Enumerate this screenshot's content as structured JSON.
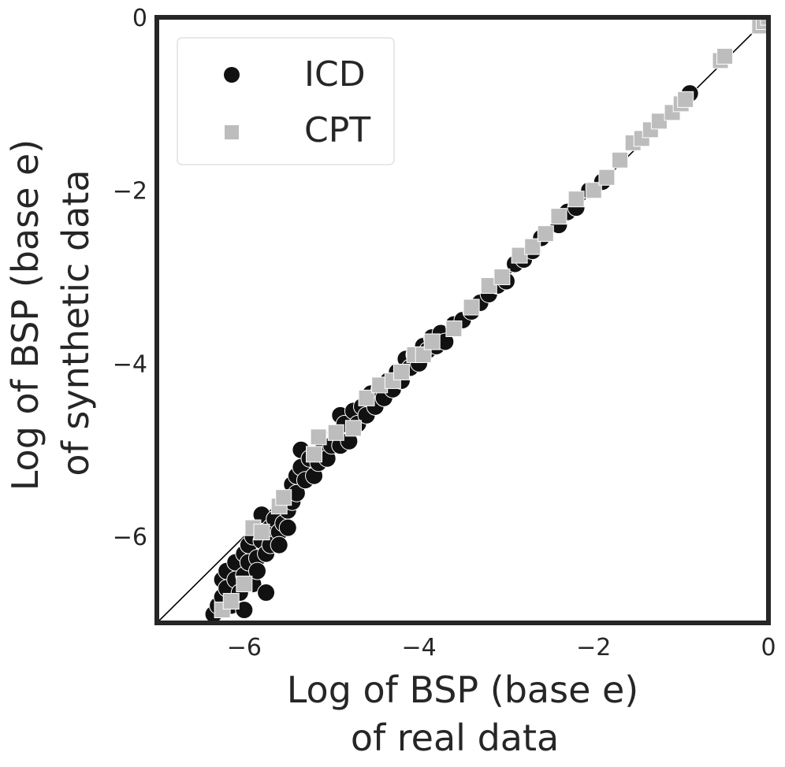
{
  "chart_data": {
    "type": "scatter",
    "xlabel": [
      "Log of BSP (base e)",
      "of real data"
    ],
    "ylabel": [
      "Log of BSP (base e)",
      "of synthetic data"
    ],
    "xlim": [
      -7,
      0
    ],
    "ylim": [
      -7,
      0
    ],
    "x_ticks": [
      -6,
      -4,
      -2,
      0
    ],
    "y_ticks": [
      0,
      -2,
      -4,
      -6
    ],
    "x_tick_labels": [
      "−6",
      "−4",
      "−2",
      "0"
    ],
    "y_tick_labels": [
      "0",
      "−2",
      "−4",
      "−6"
    ],
    "grid": false,
    "legend_position": "top-left",
    "reference_line": {
      "from": [
        -7,
        -7
      ],
      "to": [
        0,
        0
      ],
      "color": "#000000"
    },
    "colors": {
      "icd": "#111111",
      "cpt": "#bdbdbd",
      "frame": "#262626"
    },
    "series": [
      {
        "name": "ICD",
        "marker": "circle",
        "color": "#111111",
        "points": [
          [
            -6.35,
            -6.9
          ],
          [
            -6.3,
            -6.8
          ],
          [
            -6.25,
            -6.7
          ],
          [
            -6.25,
            -6.5
          ],
          [
            -6.2,
            -6.6
          ],
          [
            -6.2,
            -6.4
          ],
          [
            -6.15,
            -6.8
          ],
          [
            -6.1,
            -6.3
          ],
          [
            -6.1,
            -6.5
          ],
          [
            -6.05,
            -6.65
          ],
          [
            -6.0,
            -6.2
          ],
          [
            -6.0,
            -6.45
          ],
          [
            -6.0,
            -6.85
          ],
          [
            -5.95,
            -6.3
          ],
          [
            -5.95,
            -6.1
          ],
          [
            -5.9,
            -6.55
          ],
          [
            -5.9,
            -6.0
          ],
          [
            -5.85,
            -6.25
          ],
          [
            -5.85,
            -6.4
          ],
          [
            -5.8,
            -5.75
          ],
          [
            -5.8,
            -6.05
          ],
          [
            -5.75,
            -6.2
          ],
          [
            -5.75,
            -6.65
          ],
          [
            -5.7,
            -5.9
          ],
          [
            -5.7,
            -6.1
          ],
          [
            -5.65,
            -5.8
          ],
          [
            -5.6,
            -5.95
          ],
          [
            -5.6,
            -6.1
          ],
          [
            -5.55,
            -5.6
          ],
          [
            -5.55,
            -5.85
          ],
          [
            -5.5,
            -5.7
          ],
          [
            -5.5,
            -5.9
          ],
          [
            -5.45,
            -5.4
          ],
          [
            -5.45,
            -5.6
          ],
          [
            -5.4,
            -5.3
          ],
          [
            -5.4,
            -5.5
          ],
          [
            -5.35,
            -5.0
          ],
          [
            -5.35,
            -5.2
          ],
          [
            -5.3,
            -5.35
          ],
          [
            -5.25,
            -5.1
          ],
          [
            -5.2,
            -5.3
          ],
          [
            -5.15,
            -5.15
          ],
          [
            -5.1,
            -5.0
          ],
          [
            -5.05,
            -5.1
          ],
          [
            -5.0,
            -4.95
          ],
          [
            -4.95,
            -4.8
          ],
          [
            -4.9,
            -4.6
          ],
          [
            -4.9,
            -4.95
          ],
          [
            -4.85,
            -4.7
          ],
          [
            -4.8,
            -4.9
          ],
          [
            -4.75,
            -4.55
          ],
          [
            -4.7,
            -4.7
          ],
          [
            -4.65,
            -4.5
          ],
          [
            -4.6,
            -4.6
          ],
          [
            -4.55,
            -4.35
          ],
          [
            -4.5,
            -4.5
          ],
          [
            -4.45,
            -4.3
          ],
          [
            -4.4,
            -4.4
          ],
          [
            -4.35,
            -4.2
          ],
          [
            -4.3,
            -4.3
          ],
          [
            -4.25,
            -4.1
          ],
          [
            -4.2,
            -4.2
          ],
          [
            -4.15,
            -3.95
          ],
          [
            -4.1,
            -4.05
          ],
          [
            -4.05,
            -3.9
          ],
          [
            -4.0,
            -4.0
          ],
          [
            -3.95,
            -3.8
          ],
          [
            -3.9,
            -3.85
          ],
          [
            -3.85,
            -3.7
          ],
          [
            -3.8,
            -3.8
          ],
          [
            -3.75,
            -3.65
          ],
          [
            -3.7,
            -3.75
          ],
          [
            -3.6,
            -3.55
          ],
          [
            -3.5,
            -3.5
          ],
          [
            -3.4,
            -3.4
          ],
          [
            -3.3,
            -3.3
          ],
          [
            -3.2,
            -3.2
          ],
          [
            -3.1,
            -3.1
          ],
          [
            -3.0,
            -3.05
          ],
          [
            -2.9,
            -2.85
          ],
          [
            -2.8,
            -2.8
          ],
          [
            -2.7,
            -2.7
          ],
          [
            -2.6,
            -2.55
          ],
          [
            -2.4,
            -2.4
          ],
          [
            -2.3,
            -2.25
          ],
          [
            -2.2,
            -2.2
          ],
          [
            -2.05,
            -2.0
          ],
          [
            -1.9,
            -1.9
          ],
          [
            -0.9,
            -0.88
          ]
        ]
      },
      {
        "name": "CPT",
        "marker": "square",
        "color": "#bdbdbd",
        "points": [
          [
            -6.25,
            -6.85
          ],
          [
            -6.15,
            -6.75
          ],
          [
            -6.0,
            -6.55
          ],
          [
            -5.9,
            -5.9
          ],
          [
            -5.8,
            -5.95
          ],
          [
            -5.6,
            -5.65
          ],
          [
            -5.55,
            -5.55
          ],
          [
            -5.2,
            -5.05
          ],
          [
            -5.15,
            -4.85
          ],
          [
            -4.95,
            -4.8
          ],
          [
            -4.75,
            -4.75
          ],
          [
            -4.6,
            -4.4
          ],
          [
            -4.45,
            -4.25
          ],
          [
            -4.3,
            -4.2
          ],
          [
            -4.2,
            -4.1
          ],
          [
            -4.05,
            -3.9
          ],
          [
            -3.95,
            -3.9
          ],
          [
            -3.85,
            -3.75
          ],
          [
            -3.6,
            -3.6
          ],
          [
            -3.4,
            -3.35
          ],
          [
            -3.2,
            -3.1
          ],
          [
            -3.05,
            -3.0
          ],
          [
            -2.85,
            -2.75
          ],
          [
            -2.7,
            -2.65
          ],
          [
            -2.55,
            -2.5
          ],
          [
            -2.4,
            -2.3
          ],
          [
            -2.2,
            -2.1
          ],
          [
            -2.0,
            -2.0
          ],
          [
            -1.85,
            -1.85
          ],
          [
            -1.7,
            -1.65
          ],
          [
            -1.55,
            -1.45
          ],
          [
            -1.45,
            -1.4
          ],
          [
            -1.35,
            -1.3
          ],
          [
            -1.25,
            -1.2
          ],
          [
            -1.1,
            -1.1
          ],
          [
            -1.0,
            -1.0
          ],
          [
            -0.95,
            -0.95
          ],
          [
            -0.55,
            -0.5
          ],
          [
            -0.5,
            -0.45
          ],
          [
            -0.1,
            -0.1
          ],
          [
            -0.05,
            -0.05
          ],
          [
            0.0,
            0.0
          ]
        ]
      }
    ]
  }
}
